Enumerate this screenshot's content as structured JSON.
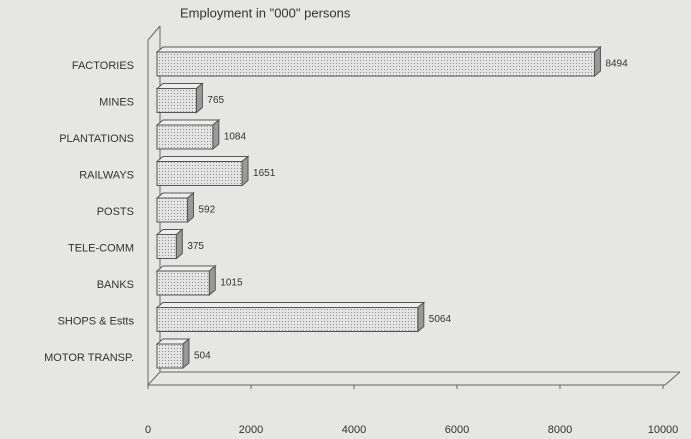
{
  "chart_data": {
    "type": "bar",
    "orientation": "horizontal",
    "title": "Employment in \"000\" persons",
    "categories": [
      "FACTORIES",
      "MINES",
      "PLANTATIONS",
      "RAILWAYS",
      "POSTS",
      "TELE-COMM",
      "BANKS",
      "SHOPS & Estts",
      "MOTOR TRANSP."
    ],
    "values": [
      8494,
      765,
      1084,
      1651,
      592,
      375,
      1015,
      5064,
      504
    ],
    "color": "#d4d4d4",
    "xlim": [
      0,
      10000
    ],
    "xticks": [
      0,
      2000,
      4000,
      6000,
      8000,
      10000
    ],
    "grid": false
  }
}
